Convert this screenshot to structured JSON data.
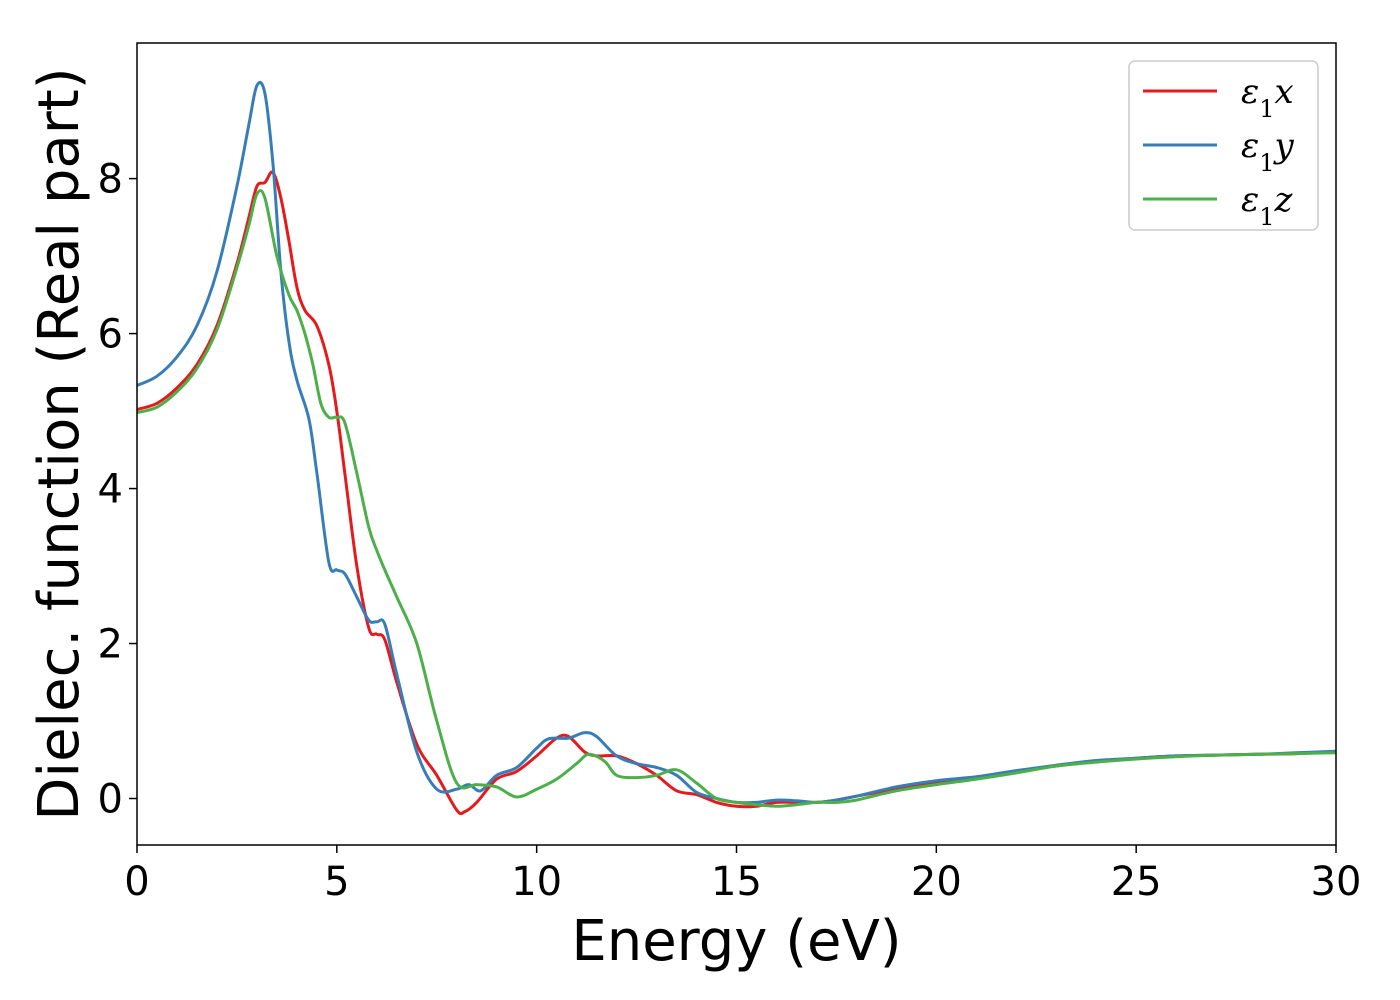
{
  "chart_data": {
    "type": "line",
    "title": "",
    "xlabel": "Energy (eV)",
    "ylabel": "Dielec. function (Real part)",
    "xlim": [
      0,
      30
    ],
    "ylim": [
      -0.6,
      9.75
    ],
    "xticks": [
      0,
      5,
      10,
      15,
      20,
      25,
      30
    ],
    "yticks": [
      0,
      2,
      4,
      6,
      8
    ],
    "grid": false,
    "legend_position": "top-right",
    "series": [
      {
        "name": "ε1x",
        "color": "#e41a1c",
        "x": [
          0,
          0.5,
          1.0,
          1.5,
          2.0,
          2.5,
          2.8,
          3.0,
          3.2,
          3.4,
          3.6,
          3.8,
          4.0,
          4.2,
          4.5,
          4.8,
          5.0,
          5.2,
          5.5,
          5.8,
          6.0,
          6.2,
          6.5,
          7.0,
          7.5,
          8.0,
          8.2,
          8.5,
          9.0,
          9.5,
          10.0,
          10.5,
          10.8,
          11.2,
          11.5,
          12.0,
          12.5,
          13.0,
          13.5,
          14.0,
          14.5,
          15.0,
          15.5,
          16.0,
          16.5,
          17.0,
          17.5,
          18.0,
          19.0,
          20.0,
          21.0,
          22.0,
          23.0,
          24.0,
          25.0,
          26.0,
          27.0,
          28.0,
          29.0,
          30.0
        ],
        "values": [
          5.02,
          5.1,
          5.3,
          5.6,
          6.1,
          6.9,
          7.5,
          7.9,
          7.95,
          8.08,
          7.75,
          7.2,
          6.6,
          6.3,
          6.1,
          5.6,
          5.0,
          4.2,
          3.0,
          2.2,
          2.12,
          2.05,
          1.5,
          0.7,
          0.3,
          -0.15,
          -0.17,
          -0.05,
          0.25,
          0.35,
          0.55,
          0.78,
          0.8,
          0.6,
          0.55,
          0.55,
          0.45,
          0.3,
          0.1,
          0.05,
          -0.05,
          -0.1,
          -0.1,
          -0.05,
          -0.05,
          -0.05,
          -0.02,
          0.03,
          0.12,
          0.2,
          0.27,
          0.35,
          0.42,
          0.48,
          0.52,
          0.55,
          0.56,
          0.57,
          0.58,
          0.6
        ]
      },
      {
        "name": "ε1y",
        "color": "#377eb8",
        "x": [
          0,
          0.5,
          1.0,
          1.5,
          2.0,
          2.5,
          2.8,
          3.0,
          3.2,
          3.4,
          3.6,
          3.8,
          4.0,
          4.3,
          4.5,
          4.8,
          5.0,
          5.2,
          5.5,
          5.8,
          6.0,
          6.2,
          6.5,
          7.0,
          7.5,
          8.0,
          8.3,
          8.6,
          9.0,
          9.5,
          10.0,
          10.3,
          10.8,
          11.2,
          11.5,
          12.0,
          12.5,
          13.0,
          13.5,
          14.0,
          14.5,
          15.0,
          15.5,
          16.0,
          16.5,
          17.0,
          17.5,
          18.0,
          19.0,
          20.0,
          21.0,
          22.0,
          23.0,
          24.0,
          25.0,
          26.0,
          27.0,
          28.0,
          29.0,
          30.0
        ],
        "values": [
          5.33,
          5.45,
          5.7,
          6.1,
          6.8,
          7.9,
          8.7,
          9.2,
          9.1,
          8.2,
          6.8,
          5.9,
          5.4,
          4.9,
          4.2,
          3.05,
          2.95,
          2.9,
          2.6,
          2.3,
          2.28,
          2.25,
          1.6,
          0.6,
          0.12,
          0.12,
          0.18,
          0.1,
          0.3,
          0.4,
          0.65,
          0.77,
          0.78,
          0.85,
          0.8,
          0.55,
          0.45,
          0.4,
          0.3,
          0.08,
          0.0,
          -0.05,
          -0.05,
          -0.02,
          -0.03,
          -0.05,
          -0.02,
          0.03,
          0.15,
          0.23,
          0.28,
          0.36,
          0.43,
          0.49,
          0.52,
          0.55,
          0.56,
          0.57,
          0.59,
          0.61
        ]
      },
      {
        "name": "ε1z",
        "color": "#4daf4a",
        "x": [
          0,
          0.5,
          1.0,
          1.5,
          2.0,
          2.5,
          2.8,
          3.0,
          3.2,
          3.5,
          3.8,
          4.0,
          4.2,
          4.4,
          4.6,
          4.8,
          5.0,
          5.2,
          5.5,
          5.8,
          6.0,
          6.2,
          6.5,
          7.0,
          7.5,
          8.0,
          8.5,
          9.0,
          9.5,
          10.0,
          10.5,
          11.0,
          11.3,
          11.7,
          12.0,
          12.5,
          13.0,
          13.5,
          14.0,
          14.5,
          15.0,
          15.5,
          16.0,
          16.5,
          17.0,
          17.5,
          18.0,
          19.0,
          20.0,
          21.0,
          22.0,
          23.0,
          24.0,
          25.0,
          26.0,
          27.0,
          28.0,
          29.0,
          30.0
        ],
        "values": [
          4.98,
          5.05,
          5.25,
          5.55,
          6.05,
          6.85,
          7.4,
          7.8,
          7.75,
          7.0,
          6.5,
          6.3,
          6.0,
          5.6,
          5.1,
          4.92,
          4.92,
          4.85,
          4.2,
          3.5,
          3.2,
          2.95,
          2.6,
          2.0,
          1.0,
          0.2,
          0.18,
          0.15,
          0.02,
          0.12,
          0.25,
          0.45,
          0.57,
          0.48,
          0.3,
          0.27,
          0.3,
          0.37,
          0.2,
          0.0,
          -0.05,
          -0.08,
          -0.1,
          -0.08,
          -0.05,
          -0.05,
          -0.02,
          0.1,
          0.18,
          0.25,
          0.33,
          0.42,
          0.47,
          0.51,
          0.54,
          0.56,
          0.57,
          0.58,
          0.59
        ]
      }
    ]
  }
}
